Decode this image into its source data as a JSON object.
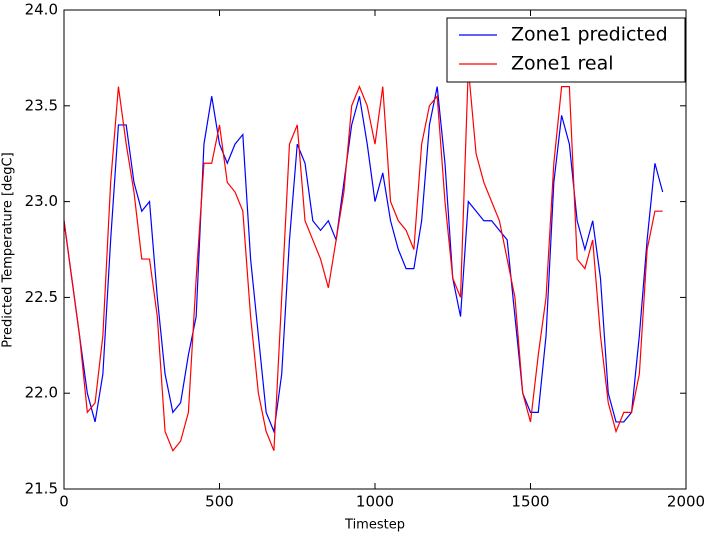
{
  "chart_data": {
    "type": "line",
    "x_label": "Timestep",
    "y_label": "Predicted Temperature [degC]",
    "x": [
      0,
      25,
      50,
      75,
      100,
      125,
      150,
      175,
      200,
      225,
      250,
      275,
      300,
      325,
      350,
      375,
      400,
      425,
      450,
      475,
      500,
      525,
      550,
      575,
      600,
      625,
      650,
      675,
      700,
      725,
      750,
      775,
      800,
      825,
      850,
      875,
      900,
      925,
      950,
      975,
      1000,
      1025,
      1050,
      1075,
      1100,
      1125,
      1150,
      1175,
      1200,
      1225,
      1250,
      1275,
      1300,
      1325,
      1350,
      1375,
      1400,
      1425,
      1450,
      1475,
      1500,
      1525,
      1550,
      1575,
      1600,
      1625,
      1650,
      1675,
      1700,
      1725,
      1750,
      1775,
      1800,
      1825,
      1850,
      1875,
      1900,
      1925
    ],
    "series": [
      {
        "name": "Zone1 predicted",
        "color": "#0000ff",
        "values": [
          22.9,
          22.6,
          22.3,
          22.0,
          21.85,
          22.1,
          22.8,
          23.4,
          23.4,
          23.1,
          22.95,
          23.0,
          22.5,
          22.1,
          21.9,
          21.95,
          22.2,
          22.4,
          23.3,
          23.55,
          23.3,
          23.2,
          23.3,
          23.35,
          22.7,
          22.3,
          21.9,
          21.8,
          22.1,
          22.8,
          23.3,
          23.2,
          22.9,
          22.85,
          22.9,
          22.8,
          23.1,
          23.4,
          23.55,
          23.3,
          23.0,
          23.15,
          22.9,
          22.75,
          22.65,
          22.65,
          22.9,
          23.4,
          23.6,
          23.2,
          22.6,
          22.4,
          23.0,
          22.95,
          22.9,
          22.9,
          22.85,
          22.8,
          22.4,
          22.0,
          21.9,
          21.9,
          22.3,
          23.1,
          23.45,
          23.3,
          22.9,
          22.75,
          22.9,
          22.6,
          22.0,
          21.85,
          21.85,
          21.9,
          22.3,
          22.8,
          23.2,
          23.05
        ]
      },
      {
        "name": "Zone1 real",
        "color": "#ff0000",
        "values": [
          22.9,
          22.6,
          22.3,
          21.9,
          21.95,
          22.3,
          23.1,
          23.6,
          23.3,
          23.05,
          22.7,
          22.7,
          22.4,
          21.8,
          21.7,
          21.75,
          21.9,
          22.6,
          23.2,
          23.2,
          23.4,
          23.1,
          23.05,
          22.95,
          22.4,
          22.0,
          21.8,
          21.7,
          22.5,
          23.3,
          23.4,
          22.9,
          22.8,
          22.7,
          22.55,
          22.8,
          23.05,
          23.5,
          23.6,
          23.5,
          23.3,
          23.6,
          23.0,
          22.9,
          22.85,
          22.75,
          23.3,
          23.5,
          23.55,
          23.0,
          22.6,
          22.5,
          23.7,
          23.25,
          23.1,
          23.0,
          22.9,
          22.7,
          22.5,
          22.0,
          21.85,
          22.2,
          22.5,
          23.2,
          23.6,
          23.6,
          22.7,
          22.65,
          22.8,
          22.3,
          21.95,
          21.8,
          21.9,
          21.9,
          22.1,
          22.75,
          22.95,
          22.95
        ]
      }
    ],
    "xlim": [
      0,
      2000
    ],
    "xticks": [
      0,
      500,
      1000,
      1500,
      2000
    ],
    "ylim": [
      21.5,
      24.0
    ],
    "yticks": [
      21.5,
      {
        "value": 22,
        "label": "22.0"
      },
      22.5,
      {
        "value": 23,
        "label": "23.0"
      },
      23.5,
      {
        "value": 24,
        "label": "24.0"
      }
    ],
    "legend": "upper right"
  }
}
